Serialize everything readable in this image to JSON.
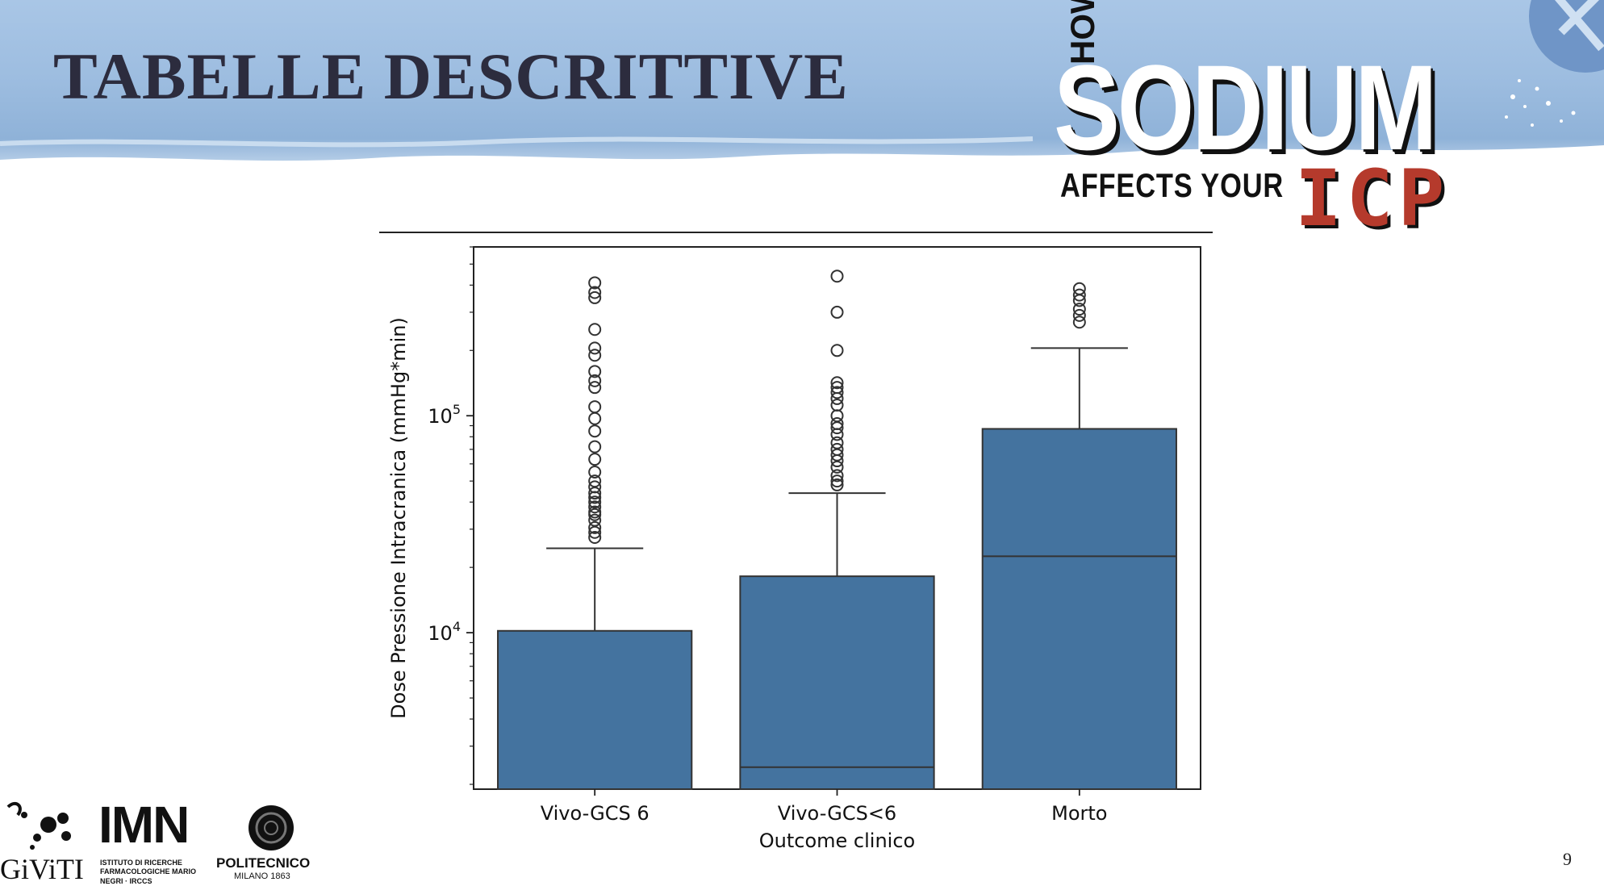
{
  "slide": {
    "title": "TABELLE DESCRITTIVE",
    "page_number": "9"
  },
  "logo": {
    "how": "HOW",
    "sodium": "SODIUM",
    "affects": "AFFECTS YOUR",
    "icp": "ICP"
  },
  "partner_logos": {
    "giviti": "GiViTI",
    "imn": "IMN",
    "imn_subtitle": "ISTITUTO DI RICERCHE FARMACOLOGICHE MARIO NEGRI · IRCCS",
    "politecnico": "POLITECNICO",
    "politecnico_sub": "MILANO 1863"
  },
  "colors": {
    "box_fill": "#44739f",
    "banner_blue": "#9dbde0",
    "title": "#2c2c3e",
    "icp_red": "#b53a2c"
  },
  "chart_data": {
    "type": "boxplot",
    "title": "",
    "xlabel": "Outcome clinico",
    "ylabel": "Dose Pressione Intracranica (mmHg*min)",
    "yscale": "log",
    "ylim": [
      1900,
      600000
    ],
    "yticks": [
      {
        "value": 10000,
        "base": "10",
        "exp": "4"
      },
      {
        "value": 100000,
        "base": "10",
        "exp": "5"
      }
    ],
    "categories": [
      "Vivo-GCS 6",
      "Vivo-GCS<6",
      "Morto"
    ],
    "series": [
      {
        "category": "Vivo-GCS 6",
        "q1": 1900,
        "median": 1900,
        "q3": 10200,
        "whisker_low": 1900,
        "whisker_high": 24500,
        "outliers": [
          27500,
          29000,
          30500,
          33000,
          35000,
          36000,
          38000,
          40000,
          42000,
          44000,
          47000,
          50000,
          55000,
          63000,
          72000,
          85000,
          97000,
          110000,
          135000,
          145000,
          160000,
          190000,
          205000,
          250000,
          350000,
          370000,
          410000
        ]
      },
      {
        "category": "Vivo-GCS<6",
        "q1": 1900,
        "median": 2400,
        "q3": 18200,
        "whisker_low": 1900,
        "whisker_high": 44000,
        "outliers": [
          48000,
          50000,
          53000,
          58000,
          62000,
          66000,
          70000,
          75000,
          82000,
          88000,
          92000,
          100000,
          112000,
          120000,
          128000,
          135000,
          142000,
          200000,
          300000,
          440000
        ]
      },
      {
        "category": "Morto",
        "q1": 1900,
        "median": 22500,
        "q3": 87000,
        "whisker_low": 1900,
        "whisker_high": 205000,
        "outliers": [
          270000,
          290000,
          310000,
          340000,
          360000,
          385000
        ]
      }
    ],
    "grid": false,
    "legend": "none"
  }
}
